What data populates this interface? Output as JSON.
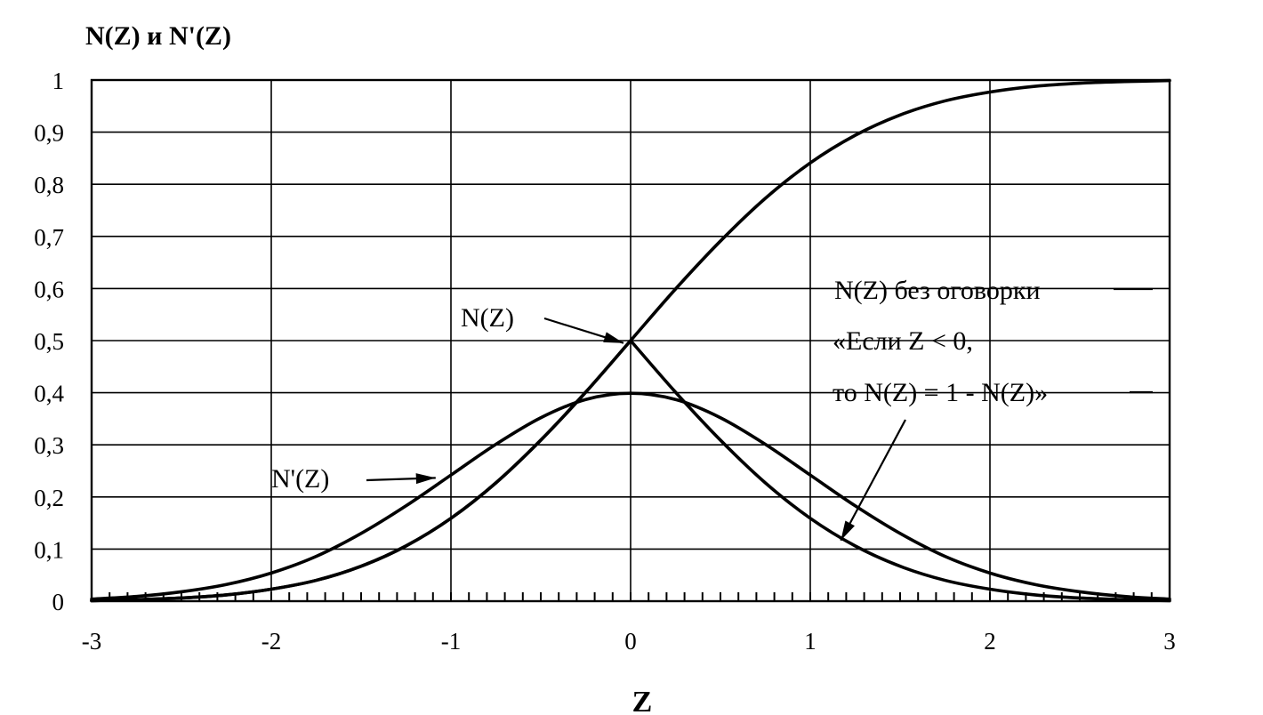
{
  "chart_data": {
    "type": "line",
    "title": "N(Z) и N'(Z)",
    "xlabel": "Z",
    "ylabel": "",
    "xlim": [
      -3,
      3
    ],
    "ylim": [
      0,
      1
    ],
    "grid": true,
    "x_ticks": [
      -3,
      -2,
      -1,
      0,
      1,
      2,
      3
    ],
    "x_tick_labels": [
      "-3",
      "-2",
      "-1",
      "0",
      "1",
      "2",
      "3"
    ],
    "y_ticks": [
      0,
      0.1,
      0.2,
      0.3,
      0.4,
      0.5,
      0.6,
      0.7,
      0.8,
      0.9,
      1
    ],
    "y_tick_labels": [
      "0",
      "0,1",
      "0,2",
      "0,3",
      "0,4",
      "0,5",
      "0,6",
      "0,7",
      "0,8",
      "0,9",
      "1"
    ],
    "x_minor_step": 0.1,
    "series": [
      {
        "name": "N(Z)",
        "x": [
          -3.0,
          -2.75,
          -2.5,
          -2.25,
          -2.0,
          -1.75,
          -1.5,
          -1.25,
          -1.0,
          -0.75,
          -0.5,
          -0.25,
          0.0,
          0.25,
          0.5,
          0.75,
          1.0,
          1.25,
          1.5,
          1.75,
          2.0,
          2.25,
          2.5,
          2.75,
          3.0
        ],
        "y": [
          0.001,
          0.003,
          0.006,
          0.012,
          0.023,
          0.04,
          0.067,
          0.106,
          0.159,
          0.227,
          0.309,
          0.401,
          0.5,
          0.599,
          0.691,
          0.773,
          0.841,
          0.894,
          0.933,
          0.96,
          0.977,
          0.988,
          0.994,
          0.997,
          0.999
        ]
      },
      {
        "name": "N'(Z)",
        "x": [
          -3.0,
          -2.75,
          -2.5,
          -2.25,
          -2.0,
          -1.75,
          -1.5,
          -1.25,
          -1.0,
          -0.75,
          -0.5,
          -0.25,
          0.0,
          0.25,
          0.5,
          0.75,
          1.0,
          1.25,
          1.5,
          1.75,
          2.0,
          2.25,
          2.5,
          2.75,
          3.0
        ],
        "y": [
          0.004,
          0.009,
          0.018,
          0.032,
          0.054,
          0.086,
          0.13,
          0.183,
          0.242,
          0.301,
          0.352,
          0.387,
          0.399,
          0.387,
          0.352,
          0.301,
          0.242,
          0.183,
          0.13,
          0.086,
          0.054,
          0.032,
          0.018,
          0.009,
          0.004
        ]
      },
      {
        "name": "N(Z) без оговорки «Если Z < 0, то N(Z) = 1 - N(Z)»",
        "x": [
          -3.0,
          -2.75,
          -2.5,
          -2.25,
          -2.0,
          -1.75,
          -1.5,
          -1.25,
          -1.0,
          -0.75,
          -0.5,
          -0.25,
          0.0,
          0.25,
          0.5,
          0.75,
          1.0,
          1.25,
          1.5,
          1.75,
          2.0,
          2.25,
          2.5,
          2.75,
          3.0
        ],
        "y": [
          0.001,
          0.003,
          0.006,
          0.012,
          0.023,
          0.04,
          0.067,
          0.106,
          0.159,
          0.227,
          0.309,
          0.401,
          0.5,
          0.401,
          0.309,
          0.227,
          0.159,
          0.106,
          0.067,
          0.04,
          0.023,
          0.012,
          0.006,
          0.003,
          0.001
        ]
      }
    ],
    "annotations": [
      {
        "text_lines": [
          "N(Z)"
        ],
        "points_to": {
          "x": 0.0,
          "y": 0.55
        }
      },
      {
        "text_lines": [
          "N'(Z)"
        ],
        "points_to": {
          "x": -1.1,
          "y": 0.24
        }
      },
      {
        "text_lines": [
          "N(Z) без оговорки",
          "«Если Z < 0,",
          "то N(Z) = 1 - N(Z)»"
        ],
        "points_to": {
          "x": 1.15,
          "y": 0.125
        }
      }
    ]
  }
}
